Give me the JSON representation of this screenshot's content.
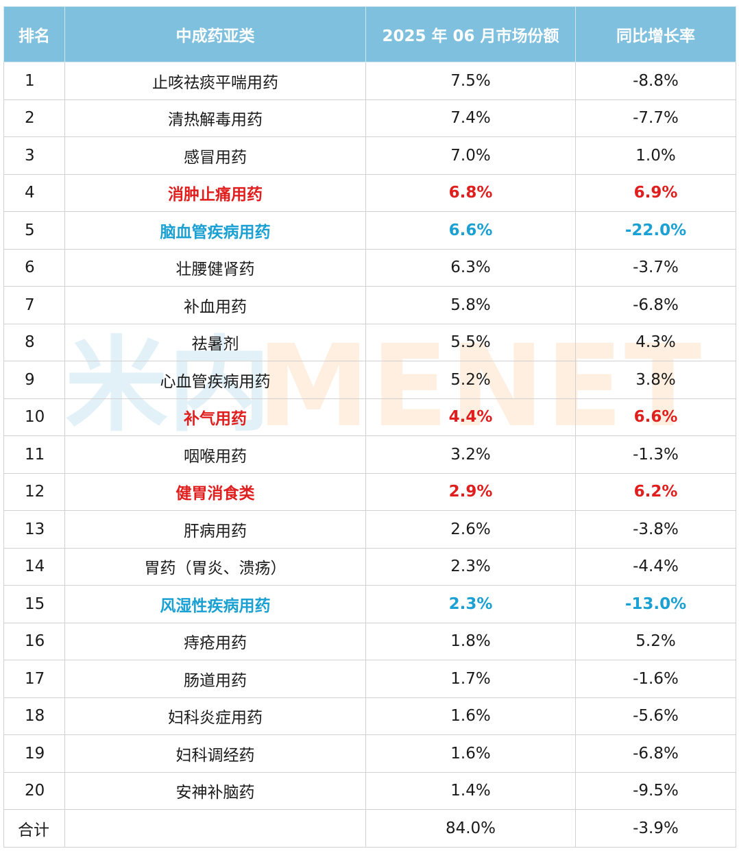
{
  "watermark": {
    "chinese": "米内",
    "english": "MENET"
  },
  "colors": {
    "header_bg": "#7ec0dd",
    "highlight_red": "#e01e1e",
    "highlight_blue": "#1aa0d2"
  },
  "table": {
    "headers": [
      "排名",
      "中成药亚类",
      "2025 年 06 月市场份额",
      "同比增长率"
    ],
    "rows": [
      {
        "rank": "1",
        "name": "止咳祛痰平喘用药",
        "share": "7.5%",
        "growth": "-8.8%",
        "highlight": "none"
      },
      {
        "rank": "2",
        "name": "清热解毒用药",
        "share": "7.4%",
        "growth": "-7.7%",
        "highlight": "none"
      },
      {
        "rank": "3",
        "name": "感冒用药",
        "share": "7.0%",
        "growth": "1.0%",
        "highlight": "none"
      },
      {
        "rank": "4",
        "name": "消肿止痛用药",
        "share": "6.8%",
        "growth": "6.9%",
        "highlight": "red"
      },
      {
        "rank": "5",
        "name": "脑血管疾病用药",
        "share": "6.6%",
        "growth": "-22.0%",
        "highlight": "blue"
      },
      {
        "rank": "6",
        "name": "壮腰健肾药",
        "share": "6.3%",
        "growth": "-3.7%",
        "highlight": "none"
      },
      {
        "rank": "7",
        "name": "补血用药",
        "share": "5.8%",
        "growth": "-6.8%",
        "highlight": "none"
      },
      {
        "rank": "8",
        "name": "祛暑剂",
        "share": "5.5%",
        "growth": "4.3%",
        "highlight": "none"
      },
      {
        "rank": "9",
        "name": "心血管疾病用药",
        "share": "5.2%",
        "growth": "3.8%",
        "highlight": "none"
      },
      {
        "rank": "10",
        "name": "补气用药",
        "share": "4.4%",
        "growth": "6.6%",
        "highlight": "red"
      },
      {
        "rank": "11",
        "name": "咽喉用药",
        "share": "3.2%",
        "growth": "-1.3%",
        "highlight": "none"
      },
      {
        "rank": "12",
        "name": "健胃消食类",
        "share": "2.9%",
        "growth": "6.2%",
        "highlight": "red"
      },
      {
        "rank": "13",
        "name": "肝病用药",
        "share": "2.6%",
        "growth": "-3.8%",
        "highlight": "none"
      },
      {
        "rank": "14",
        "name": "胃药（胃炎、溃疡）",
        "share": "2.3%",
        "growth": "-4.4%",
        "highlight": "none"
      },
      {
        "rank": "15",
        "name": "风湿性疾病用药",
        "share": "2.3%",
        "growth": "-13.0%",
        "highlight": "blue"
      },
      {
        "rank": "16",
        "name": "痔疮用药",
        "share": "1.8%",
        "growth": "5.2%",
        "highlight": "none"
      },
      {
        "rank": "17",
        "name": "肠道用药",
        "share": "1.7%",
        "growth": "-1.6%",
        "highlight": "none"
      },
      {
        "rank": "18",
        "name": "妇科炎症用药",
        "share": "1.6%",
        "growth": "-5.6%",
        "highlight": "none"
      },
      {
        "rank": "19",
        "name": "妇科调经药",
        "share": "1.6%",
        "growth": "-6.8%",
        "highlight": "none"
      },
      {
        "rank": "20",
        "name": "安神补脑药",
        "share": "1.4%",
        "growth": "-9.5%",
        "highlight": "none"
      }
    ],
    "total": {
      "rank": "合计",
      "name": "",
      "share": "84.0%",
      "growth": "-3.9%"
    }
  }
}
